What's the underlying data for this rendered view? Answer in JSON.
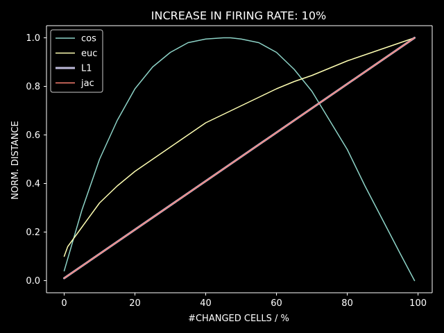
{
  "chart_data": {
    "type": "line",
    "title": "INCREASE IN FIRING RATE: 10%",
    "xlabel": "#CHANGED CELLS / %",
    "ylabel": "NORM. DISTANCE",
    "xlim": [
      -5,
      104
    ],
    "ylim": [
      -0.05,
      1.05
    ],
    "xticks": [
      0,
      20,
      40,
      60,
      80,
      100
    ],
    "yticks": [
      0.0,
      0.2,
      0.4,
      0.6,
      0.8,
      1.0
    ],
    "xtick_labels": [
      "0",
      "20",
      "40",
      "60",
      "80",
      "100"
    ],
    "ytick_labels": [
      "0.0",
      "0.2",
      "0.4",
      "0.6",
      "0.8",
      "1.0"
    ],
    "grid": false,
    "legend_position": "top-left",
    "series": [
      {
        "name": "cos",
        "color": "#8dd3c7",
        "x": [
          0,
          5,
          10,
          15,
          20,
          25,
          30,
          35,
          40,
          45,
          47,
          50,
          55,
          60,
          65,
          70,
          75,
          80,
          85,
          90,
          95,
          99
        ],
        "y": [
          0.04,
          0.29,
          0.5,
          0.66,
          0.79,
          0.88,
          0.94,
          0.98,
          0.995,
          1.0,
          1.0,
          0.995,
          0.98,
          0.94,
          0.87,
          0.78,
          0.66,
          0.54,
          0.39,
          0.25,
          0.11,
          0.0
        ]
      },
      {
        "name": "euc",
        "color": "#ffffb3",
        "x": [
          0,
          1,
          3,
          5,
          10,
          15,
          20,
          25,
          30,
          35,
          40,
          45,
          50,
          55,
          60,
          65,
          70,
          75,
          80,
          85,
          90,
          95,
          99
        ],
        "y": [
          0.1,
          0.14,
          0.18,
          0.22,
          0.32,
          0.39,
          0.45,
          0.5,
          0.55,
          0.6,
          0.65,
          0.685,
          0.72,
          0.755,
          0.79,
          0.82,
          0.845,
          0.875,
          0.905,
          0.93,
          0.955,
          0.98,
          1.0
        ]
      },
      {
        "name": "L1",
        "color": "#bebada",
        "linewidth": 3,
        "x": [
          0,
          99
        ],
        "y": [
          0.01,
          1.0
        ]
      },
      {
        "name": "jac",
        "color": "#fb8072",
        "x": [
          0,
          99
        ],
        "y": [
          0.01,
          1.0
        ]
      }
    ]
  }
}
